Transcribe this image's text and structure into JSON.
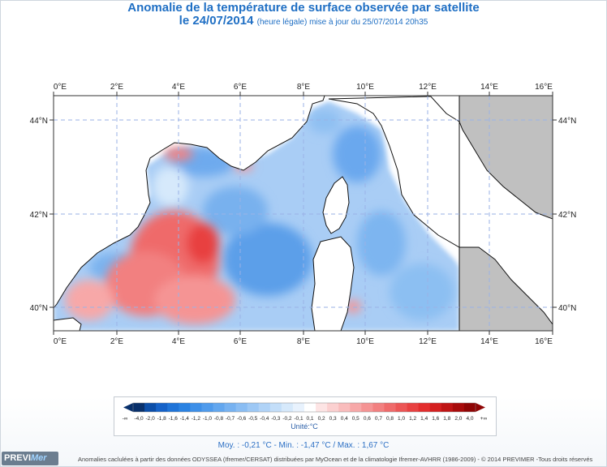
{
  "title": {
    "line1": "Anomalie de la température de surface observée par satellite",
    "date": "le 24/07/2014",
    "qualifier": "(heure légale) mise à jour du 25/07/2014 20h35"
  },
  "axes": {
    "lon_labels": [
      "0°E",
      "2°E",
      "4°E",
      "6°E",
      "8°E",
      "10°E",
      "12°E",
      "14°E",
      "16°E"
    ],
    "lat_labels": [
      "44°N",
      "42°N",
      "40°N"
    ]
  },
  "legend": {
    "ticks": [
      "-∞",
      "-4,0",
      "-2,0",
      "-1,8",
      "-1,6",
      "-1,4",
      "-1,2",
      "-1,0",
      "-0,8",
      "-0,7",
      "-0,6",
      "-0,5",
      "-0,4",
      "-0,3",
      "-0,2",
      "-0,1",
      "0,1",
      "0,2",
      "0,3",
      "0,4",
      "0,5",
      "0,6",
      "0,7",
      "0,8",
      "1,0",
      "1,2",
      "1,4",
      "1,6",
      "1,8",
      "2,0",
      "4,0",
      "+∞"
    ],
    "colors": [
      "#08306b",
      "#0b4ea8",
      "#1562c8",
      "#1f74d8",
      "#2a82e2",
      "#3d8fe8",
      "#4f9bec",
      "#63a7ef",
      "#77b2f1",
      "#8abdf3",
      "#9dc8f5",
      "#b0d3f7",
      "#c3def9",
      "#d6e9fb",
      "#e8f2fd",
      "#ffffff",
      "#fde4e4",
      "#fbd0d0",
      "#f9bcbc",
      "#f7a8a8",
      "#f59494",
      "#f28080",
      "#ef6b6b",
      "#ec5656",
      "#e84141",
      "#e32d2d",
      "#d41f1f",
      "#bf1414",
      "#a80b0b",
      "#8f0505"
    ],
    "units": "Unité:°C"
  },
  "stats": "Moy. : -0,21 °C   -   Min. : -1,47 °C / Max. : 1,67 °C",
  "credit": "Anomalies caclulées à partir des données ODYSSEA (Ifremer/CERSAT) distribuées par MyOcean et de la climatologie Ifremer-AVHRR (1986-2009) - © 2014 PREVIMER -Tous droits réservés",
  "logo": {
    "part1": "PREVI",
    "part2": "Mer"
  }
}
